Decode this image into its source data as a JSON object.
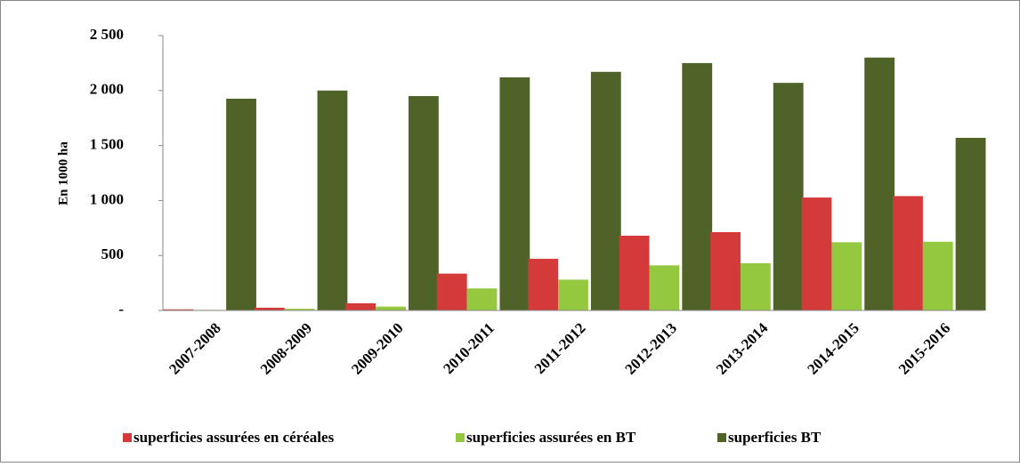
{
  "chart_data": {
    "type": "bar",
    "ylabel": "En 1000 ha",
    "categories": [
      "2007-2008",
      "2008-2009",
      "2009-2010",
      "2010-2011",
      "2011-2012",
      "2012-2013",
      "2013-2014",
      "2014-2015",
      "2015-2016"
    ],
    "series": [
      {
        "name": "superficies assurées en céréales",
        "color": "#d43a3a",
        "values": [
          10,
          25,
          65,
          335,
          470,
          680,
          712,
          1027,
          1040
        ]
      },
      {
        "name": "superficies assurées en BT",
        "color": "#93c83f",
        "values": [
          5,
          15,
          35,
          200,
          280,
          410,
          430,
          620,
          625
        ]
      },
      {
        "name": "superficies BT",
        "color": "#4f6228",
        "values": [
          1926,
          2000,
          1950,
          2120,
          2170,
          2250,
          2070,
          2300,
          1570
        ]
      }
    ],
    "ylim": [
      0,
      2500
    ],
    "yticks": [
      {
        "value": 0,
        "label": "-"
      },
      500,
      {
        "value": 1000,
        "label": "1 000"
      },
      {
        "value": 1500,
        "label": "1 500"
      },
      {
        "value": 2000,
        "label": "2 000"
      },
      {
        "value": 2500,
        "label": "2 500"
      }
    ],
    "grid": false,
    "legend": "bottom"
  }
}
